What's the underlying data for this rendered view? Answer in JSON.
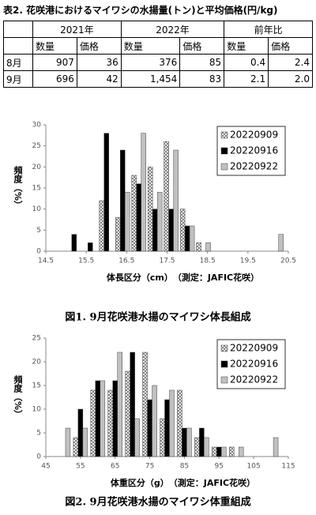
{
  "table": {
    "title": "表2. 花咲港におけるマイワシの水揚量(トン)と平均価格(円/kg)",
    "header": [
      "2021年",
      "2022年",
      "前年比"
    ],
    "subheader": [
      "数量",
      "価格",
      "数量",
      "価格",
      "数量",
      "価格"
    ],
    "rows": [
      [
        "8月",
        "907",
        "36",
        "376",
        "85",
        "0.4",
        "2.4"
      ],
      [
        "9月",
        "696",
        "42",
        "1,454",
        "83",
        "2.1",
        "2.0"
      ]
    ]
  },
  "chart_data": [
    {
      "type": "bar",
      "caption": "図1. 9月花咲港水揚のマイワシ体長組成",
      "xlabel": "体長区分（cm）　（測定：JAFIC花咲）",
      "ylabel": "頻度（%）",
      "x": [
        15.2,
        15.6,
        16.0,
        16.4,
        16.8,
        17.2,
        17.6,
        18.0,
        18.4,
        20.2
      ],
      "series": [
        {
          "name": "20220909",
          "color": "#ffffff",
          "hatch": true,
          "values": [
            0,
            0,
            12,
            8,
            18,
            20,
            26,
            10,
            2,
            0
          ]
        },
        {
          "name": "20220916",
          "color": "#000000",
          "hatch": false,
          "values": [
            4,
            2,
            28,
            24,
            16,
            10,
            10,
            6,
            0,
            0
          ]
        },
        {
          "name": "20220922",
          "color": "#c0c0c0",
          "hatch": false,
          "values": [
            0,
            0,
            0,
            14,
            28,
            14,
            24,
            6,
            2,
            4
          ]
        }
      ],
      "xlim": [
        14.5,
        20.5
      ],
      "xticks": [
        14.5,
        15.5,
        16.5,
        17.5,
        18.5,
        19.5,
        20.5
      ],
      "ylim": [
        0,
        30
      ],
      "yticks": [
        0,
        5,
        10,
        15,
        20,
        25,
        30
      ],
      "legend": "upper right"
    },
    {
      "type": "bar",
      "caption": "図2. 9月花咲港水揚のマイワシ体重組成",
      "xlabel": "体重区分（g）　（測定：JAFIC花咲）",
      "ylabel": "頻度（%）",
      "x": [
        50,
        55,
        60,
        65,
        70,
        75,
        80,
        85,
        90,
        95,
        100,
        110
      ],
      "series": [
        {
          "name": "20220909",
          "color": "#ffffff",
          "hatch": true,
          "values": [
            0,
            4,
            14,
            14,
            18,
            22,
            8,
            14,
            4,
            2,
            2,
            0
          ]
        },
        {
          "name": "20220916",
          "color": "#000000",
          "hatch": false,
          "values": [
            0,
            10,
            16,
            16,
            22,
            12,
            12,
            6,
            6,
            2,
            0,
            0
          ]
        },
        {
          "name": "20220922",
          "color": "#c0c0c0",
          "hatch": false,
          "values": [
            6,
            6,
            16,
            22,
            8,
            15,
            14,
            6,
            4,
            2,
            2,
            4
          ]
        }
      ],
      "xlim": [
        45,
        115
      ],
      "xticks": [
        45,
        55,
        65,
        75,
        85,
        95,
        105,
        115
      ],
      "ylim": [
        0,
        25
      ],
      "yticks": [
        0,
        5,
        10,
        15,
        20,
        25
      ],
      "legend": "upper right"
    }
  ]
}
